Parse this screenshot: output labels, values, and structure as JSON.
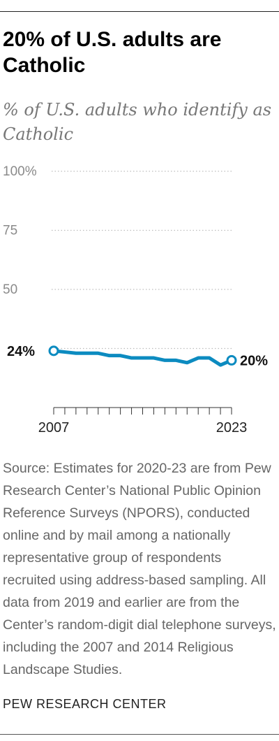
{
  "title": "20% of U.S. adults are Catholic",
  "subtitle": "% of U.S. adults who identify as Catholic",
  "source": "Source: Estimates for 2020-23 are from Pew Research Center’s National Public Opinion Reference Surveys (NPORS), conducted online and by mail among a nationally representative group of respondents recruited using address-based sampling. All data from 2019 and earlier are from the Center’s random-digit dial telephone surveys, including the 2007 and 2014 Religious Landscape Studies.",
  "credit": "PEW RESEARCH CENTER",
  "chart_data": {
    "type": "line",
    "x": [
      2007,
      2008,
      2009,
      2010,
      2011,
      2012,
      2013,
      2014,
      2015,
      2016,
      2017,
      2018,
      2019,
      2020,
      2021,
      2022,
      2023
    ],
    "series": [
      {
        "values": [
          24,
          23.5,
          23,
          23,
          23,
          22,
          22,
          21,
          21,
          21,
          20,
          20,
          19,
          21,
          21,
          18,
          20
        ]
      }
    ],
    "ylim": [
      0,
      100
    ],
    "yticks": [
      25,
      50,
      75,
      100
    ],
    "ytick_labels": [
      "",
      "50",
      "75",
      "100%"
    ],
    "xtick_labels": [
      "2007",
      "2023"
    ],
    "data_labels": {
      "start": "24%",
      "end": "20%"
    },
    "grid": true,
    "color": "#0c8bc0"
  }
}
